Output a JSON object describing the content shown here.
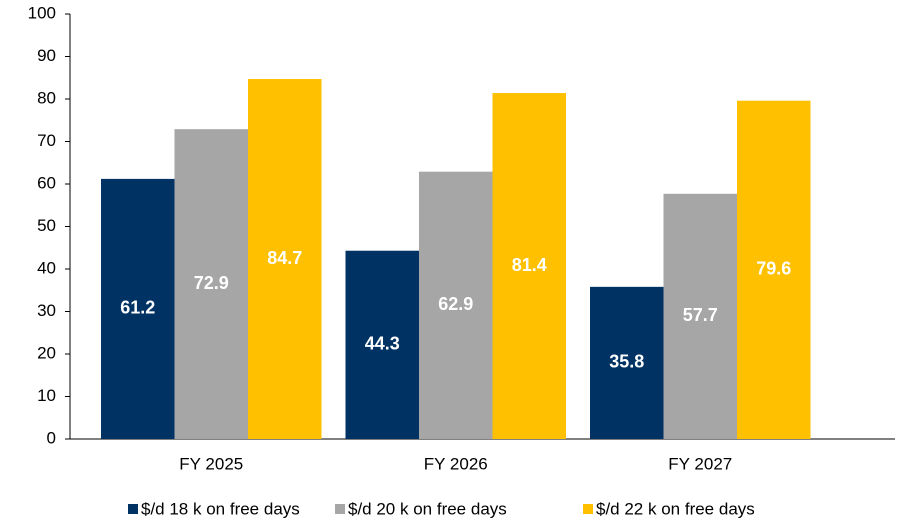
{
  "chart_data": {
    "type": "bar",
    "categories": [
      "FY 2025",
      "FY 2026",
      "FY 2027"
    ],
    "series": [
      {
        "name": "$/d 18 k on free days",
        "color": "#003263",
        "values": [
          61.2,
          44.3,
          35.8
        ]
      },
      {
        "name": "$/d 20 k on free days",
        "color": "#a6a6a6",
        "values": [
          72.9,
          62.9,
          57.7
        ]
      },
      {
        "name": "$/d 22 k on free days",
        "color": "#ffc000",
        "values": [
          84.7,
          81.4,
          79.6
        ]
      }
    ],
    "ylim": [
      0,
      100
    ],
    "yticks": [
      0,
      10,
      20,
      30,
      40,
      50,
      60,
      70,
      80,
      90,
      100
    ],
    "grid": false,
    "legend": "bottom"
  }
}
